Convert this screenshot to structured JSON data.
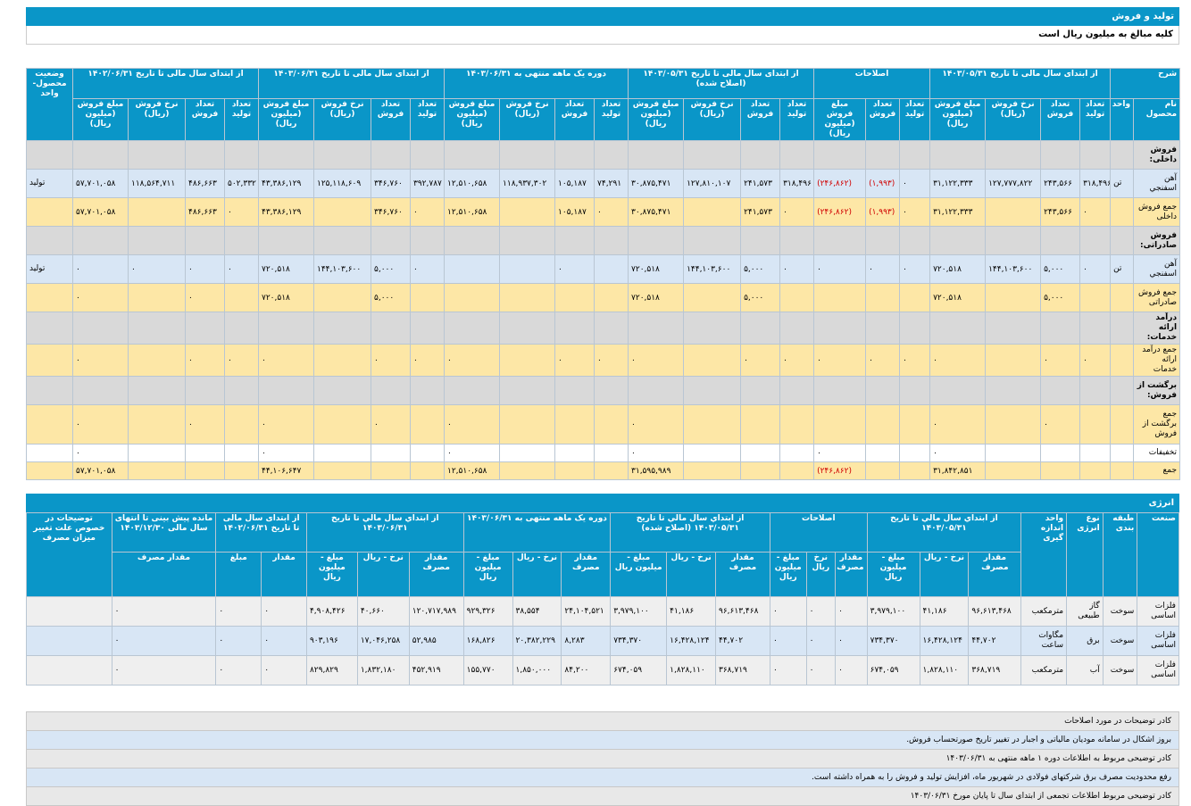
{
  "header": {
    "title": "تولید و فروش",
    "note": "کلیه مبالغ به میلیون ریال است"
  },
  "t1": {
    "groups": [
      "شرح",
      "از ابتدای سال مالی تا تاریخ ۱۴۰۳/۰۵/۳۱",
      "اصلاحات",
      "از ابتدای سال مالی تا تاریخ ۱۴۰۳/۰۵/۳۱ (اصلاح شده)",
      "دوره یک ماهه منتهی به ۱۴۰۳/۰۶/۳۱",
      "از ابتدای سال مالی تا تاریخ ۱۴۰۳/۰۶/۳۱",
      "از ابتدای سال مالی تا تاریخ ۱۴۰۲/۰۶/۳۱",
      "وضعیت محصول- واحد"
    ],
    "sub": [
      "نام محصول",
      "واحد",
      "تعداد تولید",
      "تعداد فروش",
      "نرخ فروش (ریال)",
      "مبلغ فروش (میلیون ریال)",
      "تعداد تولید",
      "تعداد فروش",
      "مبلغ فروش (میلیون ریال)",
      "تعداد تولید",
      "تعداد فروش",
      "نرخ فروش (ریال)",
      "مبلغ فروش (میلیون ریال)",
      "تعداد تولید",
      "تعداد فروش",
      "نرخ فروش (ریال)",
      "مبلغ فروش (میلیون ریال)",
      "تعداد تولید",
      "تعداد فروش",
      "نرخ فروش (ریال)",
      "مبلغ فروش (میلیون ریال)",
      "تعداد تولید",
      "تعداد فروش",
      "نرخ فروش (ریال)",
      "مبلغ فروش (میلیون ریال)"
    ],
    "rows": [
      {
        "cls": "sec",
        "c": [
          "فروش داخلی:",
          "",
          "",
          "",
          "",
          "",
          "",
          "",
          "",
          "",
          "",
          "",
          "",
          "",
          "",
          "",
          "",
          "",
          "",
          "",
          "",
          "",
          "",
          "",
          "",
          ""
        ]
      },
      {
        "cls": "blue",
        "c": [
          "آهن اسفنجي",
          "تن",
          "۳۱۸,۴۹۶",
          "۲۴۳,۵۶۶",
          "۱۲۷,۷۷۷,۸۲۲",
          "۳۱,۱۲۲,۳۳۳",
          "۰",
          "(۱,۹۹۳)",
          "(۲۴۶,۸۶۲)",
          "۳۱۸,۴۹۶",
          "۲۴۱,۵۷۳",
          "۱۲۷,۸۱۰,۱۰۷",
          "۳۰,۸۷۵,۴۷۱",
          "۷۴,۲۹۱",
          "۱۰۵,۱۸۷",
          "۱۱۸,۹۳۷,۳۰۲",
          "۱۲,۵۱۰,۶۵۸",
          "۳۹۲,۷۸۷",
          "۳۴۶,۷۶۰",
          "۱۲۵,۱۱۸,۶۰۹",
          "۴۳,۳۸۶,۱۲۹",
          "۵۰۲,۳۳۲",
          "۴۸۶,۶۶۳",
          "۱۱۸,۵۶۴,۷۱۱",
          "۵۷,۷۰۱,۰۵۸",
          "تولید"
        ]
      },
      {
        "cls": "tot",
        "c": [
          "جمع فروش داخلی",
          "",
          "۰",
          "۲۴۳,۵۶۶",
          "",
          "۳۱,۱۲۲,۳۳۳",
          "۰",
          "(۱,۹۹۳)",
          "(۲۴۶,۸۶۲)",
          "۰",
          "۲۴۱,۵۷۳",
          "",
          "۳۰,۸۷۵,۴۷۱",
          "۰",
          "۱۰۵,۱۸۷",
          "",
          "۱۲,۵۱۰,۶۵۸",
          "۰",
          "۳۴۶,۷۶۰",
          "",
          "۴۳,۳۸۶,۱۲۹",
          "۰",
          "۴۸۶,۶۶۳",
          "",
          "۵۷,۷۰۱,۰۵۸",
          ""
        ]
      },
      {
        "cls": "sec",
        "c": [
          "فروش صادراتی:",
          "",
          "",
          "",
          "",
          "",
          "",
          "",
          "",
          "",
          "",
          "",
          "",
          "",
          "",
          "",
          "",
          "",
          "",
          "",
          "",
          "",
          "",
          "",
          "",
          ""
        ]
      },
      {
        "cls": "blue",
        "c": [
          "آهن اسفنجي",
          "تن",
          "۰",
          "۵,۰۰۰",
          "۱۴۴,۱۰۳,۶۰۰",
          "۷۲۰,۵۱۸",
          "۰",
          "۰",
          "۰",
          "۰",
          "۵,۰۰۰",
          "۱۴۴,۱۰۳,۶۰۰",
          "۷۲۰,۵۱۸",
          "",
          "۰",
          "",
          "",
          "۰",
          "۵,۰۰۰",
          "۱۴۴,۱۰۳,۶۰۰",
          "۷۲۰,۵۱۸",
          "۰",
          "۰",
          "۰",
          "۰",
          "تولید"
        ]
      },
      {
        "cls": "tot",
        "c": [
          "جمع فروش صادراتی",
          "",
          "",
          "۵,۰۰۰",
          "",
          "۷۲۰,۵۱۸",
          "",
          "",
          "",
          "",
          "۵,۰۰۰",
          "",
          "۷۲۰,۵۱۸",
          "",
          "",
          "",
          "",
          "",
          "۵,۰۰۰",
          "",
          "۷۲۰,۵۱۸",
          "",
          "۰",
          "",
          "۰",
          ""
        ]
      },
      {
        "cls": "sec",
        "c": [
          "درآمد ارائه خدمات:",
          "",
          "",
          "",
          "",
          "",
          "",
          "",
          "",
          "",
          "",
          "",
          "",
          "",
          "",
          "",
          "",
          "",
          "",
          "",
          "",
          "",
          "",
          "",
          "",
          ""
        ]
      },
      {
        "cls": "tot",
        "c": [
          "جمع درآمد ارائه خدمات",
          "",
          "۰",
          "۰",
          "",
          "۰",
          "۰",
          "۰",
          "۰",
          "۰",
          "۰",
          "",
          "۰",
          "۰",
          "۰",
          "",
          "۰",
          "۰",
          "۰",
          "",
          "۰",
          "۰",
          "۰",
          "",
          "۰",
          ""
        ]
      },
      {
        "cls": "sec",
        "c": [
          "برگشت از فروش:",
          "",
          "",
          "",
          "",
          "",
          "",
          "",
          "",
          "",
          "",
          "",
          "",
          "",
          "",
          "",
          "",
          "",
          "",
          "",
          "",
          "",
          "",
          "",
          "",
          ""
        ]
      },
      {
        "cls": "tot",
        "c": [
          "جمع برگشت از فروش",
          "",
          "",
          "۰",
          "",
          "۰",
          "",
          "",
          "",
          "",
          "",
          "",
          "۰",
          "",
          "",
          "",
          "۰",
          "",
          "۰",
          "",
          "۰",
          "",
          "۰",
          "",
          "۰",
          ""
        ]
      },
      {
        "cls": "white",
        "c": [
          "تخفیفات",
          "",
          "",
          "",
          "",
          "۰",
          "",
          "",
          "۰",
          "",
          "",
          "",
          "۰",
          "",
          "",
          "",
          "۰",
          "",
          "",
          "",
          "۰",
          "",
          "",
          "",
          "۰",
          ""
        ]
      },
      {
        "cls": "tot",
        "c": [
          "جمع",
          "",
          "",
          "",
          "",
          "۳۱,۸۴۲,۸۵۱",
          "",
          "",
          "(۲۴۶,۸۶۲)",
          "",
          "",
          "",
          "۳۱,۵۹۵,۹۸۹",
          "",
          "",
          "",
          "۱۲,۵۱۰,۶۵۸",
          "",
          "",
          "",
          "۴۴,۱۰۶,۶۴۷",
          "",
          "",
          "",
          "۵۷,۷۰۱,۰۵۸",
          ""
        ]
      }
    ]
  },
  "energy": {
    "title": "انرژی",
    "groups": [
      "صنعت",
      "طبقه بندی",
      "نوع انرژی",
      "واحد اندازه گیری",
      "از ابتداي سال مالي تا تاريخ ۱۴۰۳/۰۵/۳۱",
      "اصلاحات",
      "از ابتداي سال مالي تا تاريخ ۱۴۰۳/۰۵/۳۱ (اصلاح شده)",
      "دوره یک ماهه منتهی به ۱۴۰۳/۰۶/۳۱",
      "از ابتداي سال مالي تا تاريخ ۱۴۰۳/۰۶/۳۱",
      "از ابتدای سال مالی تا تاریخ ۱۴۰۲/۰۶/۳۱",
      "مانده پیش بینی تا انتهای سال مالی ۱۴۰۳/۱۲/۳۰",
      "توضیحات در خصوص علت تغییر میزان مصرف"
    ],
    "sub": [
      "مقدار مصرف",
      "نرخ - ریال",
      "مبلغ - میلیون ریال",
      "مقدار مصرف",
      "نرخ ریال",
      "مبلغ - میلیون ریال",
      "مقدار مصرف",
      "نرخ - ریال",
      "مبلغ - میلیون ریال",
      "مقدار مصرف",
      "نرخ - ریال",
      "مبلغ - میلیون ریال",
      "مقدار مصرف",
      "نرخ - ریال",
      "مبلغ - میلیون ریال",
      "مقدار",
      "مبلغ",
      "مقدار مصرف"
    ],
    "rows": [
      {
        "cls": "grey",
        "c": [
          "فلزات اساسی",
          "سوخت",
          "گاز طبیعی",
          "مترمکعب",
          "۹۶,۶۱۳,۴۶۸",
          "۴۱,۱۸۶",
          "۳,۹۷۹,۱۰۰",
          "۰",
          "۰",
          "۰",
          "۹۶,۶۱۳,۴۶۸",
          "۴۱,۱۸۶",
          "۳,۹۷۹,۱۰۰",
          "۲۴,۱۰۴,۵۲۱",
          "۳۸,۵۵۴",
          "۹۲۹,۳۲۶",
          "۱۲۰,۷۱۷,۹۸۹",
          "۴۰,۶۶۰",
          "۴,۹۰۸,۴۲۶",
          "۰",
          "۰",
          "۰",
          ""
        ]
      },
      {
        "cls": "blue",
        "c": [
          "فلزات اساسی",
          "سوخت",
          "برق",
          "مگاوات ساعت",
          "۴۴,۷۰۲",
          "۱۶,۴۲۸,۱۲۴",
          "۷۳۴,۳۷۰",
          "۰",
          "۰",
          "۰",
          "۴۴,۷۰۲",
          "۱۶,۴۲۸,۱۲۴",
          "۷۳۴,۳۷۰",
          "۸,۲۸۳",
          "۲۰,۳۸۲,۲۲۹",
          "۱۶۸,۸۲۶",
          "۵۲,۹۸۵",
          "۱۷,۰۴۶,۲۵۸",
          "۹۰۳,۱۹۶",
          "۰",
          "۰",
          "۰",
          ""
        ]
      },
      {
        "cls": "grey",
        "c": [
          "فلزات اساسی",
          "سوخت",
          "آب",
          "مترمکعب",
          "۳۶۸,۷۱۹",
          "۱,۸۲۸,۱۱۰",
          "۶۷۴,۰۵۹",
          "۰",
          "۰",
          "۰",
          "۳۶۸,۷۱۹",
          "۱,۸۲۸,۱۱۰",
          "۶۷۴,۰۵۹",
          "۸۴,۲۰۰",
          "۱,۸۵۰,۰۰۰",
          "۱۵۵,۷۷۰",
          "۴۵۲,۹۱۹",
          "۱,۸۳۲,۱۸۰",
          "۸۲۹,۸۲۹",
          "۰",
          "۰",
          "۰",
          ""
        ]
      }
    ]
  },
  "notes": [
    "کادر توضیحات در مورد اصلاحات",
    "بروز اشکال در سامانه مودیان مالیاتی و اجبار در تغییر تاریخ صورتحساب فروش.",
    "کادر توضیحی مربوط به اطلاعات دوره ۱ ماهه منتهی به ۱۴۰۳/۰۶/۳۱",
    "رفع محدودیت مصرف برق شرکتهای فولادی در شهریور ماه، افزایش تولید و فروش را به همراه داشته است.",
    "کادر توضیحی مربوط اطلاعات تجمعی از ابتدای سال تا پایان مورخ ۱۴۰۳/۰۶/۳۱"
  ]
}
